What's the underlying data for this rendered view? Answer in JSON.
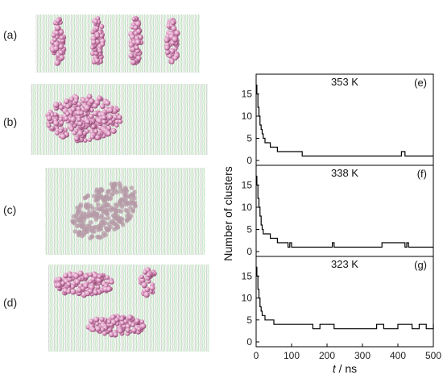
{
  "panels_left": [
    {
      "label": "(a)"
    },
    {
      "label": "(b)"
    },
    {
      "label": "(c)"
    },
    {
      "label": "(d)"
    }
  ],
  "chart_data": {
    "type": "line",
    "xlabel_italic": "t",
    "xlabel_unit": " / ns",
    "ylabel": "Number of clusters",
    "xlim": [
      0,
      500
    ],
    "xticks": [
      "0",
      "100",
      "200",
      "300",
      "400",
      "500"
    ],
    "ylim": [
      0,
      18
    ],
    "yticks": [
      "0",
      "5",
      "10",
      "15"
    ],
    "colors": {
      "line": "#000000",
      "axis": "#000000"
    },
    "subplots": [
      {
        "label": "(e)",
        "temperature": "353 K",
        "x": [
          0,
          2,
          5,
          8,
          11,
          14,
          17,
          20,
          25,
          30,
          40,
          50,
          60,
          80,
          100,
          125,
          130,
          140,
          200,
          300,
          400,
          410,
          420,
          430,
          500
        ],
        "y": [
          17,
          15,
          12,
          10,
          8,
          7,
          6,
          5,
          4,
          4,
          3,
          3,
          2,
          2,
          2,
          2,
          1,
          1,
          1,
          1,
          1,
          2,
          1,
          1,
          1
        ]
      },
      {
        "label": "(f)",
        "temperature": "338 K",
        "x": [
          0,
          2,
          5,
          8,
          11,
          14,
          17,
          20,
          30,
          40,
          50,
          60,
          70,
          80,
          90,
          95,
          100,
          150,
          200,
          215,
          220,
          300,
          350,
          355,
          420,
          425,
          430,
          500
        ],
        "y": [
          17,
          15,
          12,
          10,
          8,
          6,
          5,
          4,
          4,
          3,
          3,
          2,
          2,
          2,
          1,
          2,
          1,
          1,
          1,
          2,
          1,
          1,
          1,
          2,
          1,
          2,
          1,
          1
        ]
      },
      {
        "label": "(g)",
        "temperature": "323 K",
        "x": [
          0,
          2,
          5,
          8,
          11,
          14,
          17,
          20,
          25,
          30,
          40,
          50,
          60,
          80,
          100,
          120,
          140,
          160,
          180,
          200,
          220,
          240,
          260,
          280,
          300,
          320,
          340,
          360,
          380,
          400,
          420,
          440,
          460,
          480,
          500
        ],
        "y": [
          17,
          15,
          12,
          10,
          8,
          7,
          6,
          6,
          5,
          5,
          5,
          4,
          4,
          4,
          4,
          4,
          4,
          3,
          4,
          4,
          3,
          3,
          3,
          3,
          3,
          3,
          4,
          3,
          3,
          4,
          4,
          3,
          4,
          3,
          4
        ]
      }
    ]
  }
}
